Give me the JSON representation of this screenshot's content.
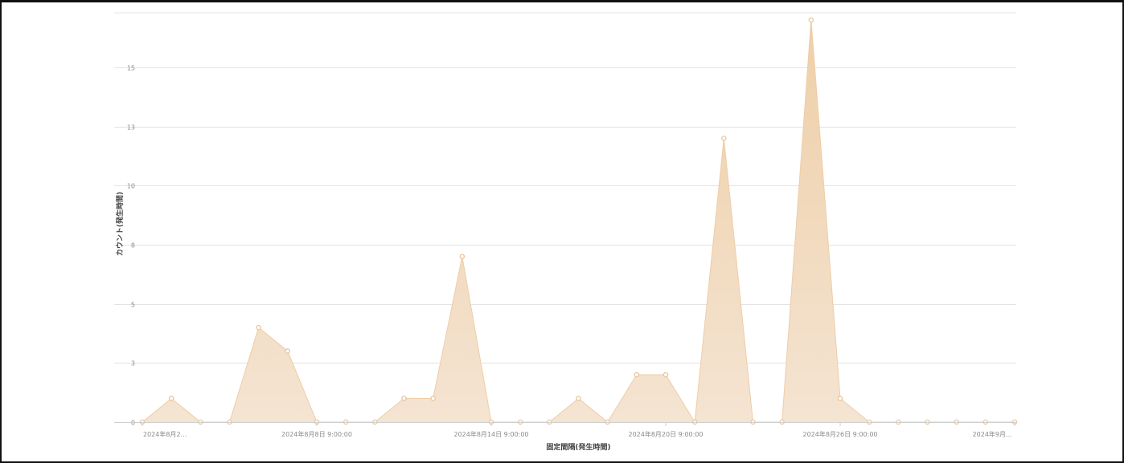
{
  "chart_data": {
    "type": "area",
    "xlabel": "固定間隔(発生時間)",
    "ylabel": "カウント(発生時間)",
    "ylim": [
      0,
      17.3
    ],
    "y_ticks": [
      {
        "value": 0,
        "label": "0"
      },
      {
        "value": 2.5,
        "label": "3"
      },
      {
        "value": 5,
        "label": "5"
      },
      {
        "value": 7.5,
        "label": "8"
      },
      {
        "value": 10,
        "label": "10"
      },
      {
        "value": 12.5,
        "label": "13"
      },
      {
        "value": 15,
        "label": "15"
      }
    ],
    "x_tick_labels": [
      {
        "index": 0,
        "label": "2024年8月2…"
      },
      {
        "index": 6,
        "label": "2024年8月8日 9:00:00"
      },
      {
        "index": 12,
        "label": "2024年8月14日 9:00:00"
      },
      {
        "index": 18,
        "label": "2024年8月20日 9:00:00"
      },
      {
        "index": 24,
        "label": "2024年8月26日 9:00:00"
      },
      {
        "index": 30,
        "label": "2024年9月…"
      }
    ],
    "series": [
      {
        "values": [
          0,
          1,
          0,
          0,
          4,
          3,
          0,
          0,
          0,
          1,
          1,
          7,
          0,
          0,
          0,
          1,
          0,
          2,
          2,
          0,
          12,
          0,
          0,
          17,
          1,
          0,
          0,
          0,
          0,
          0,
          0
        ]
      }
    ],
    "fill_color_top": "#efcfa8",
    "fill_color_bottom": "#f4e4d2",
    "line_color": "#eecda6",
    "marker_color": "#e8c49b",
    "grid": true,
    "legend": "none"
  }
}
